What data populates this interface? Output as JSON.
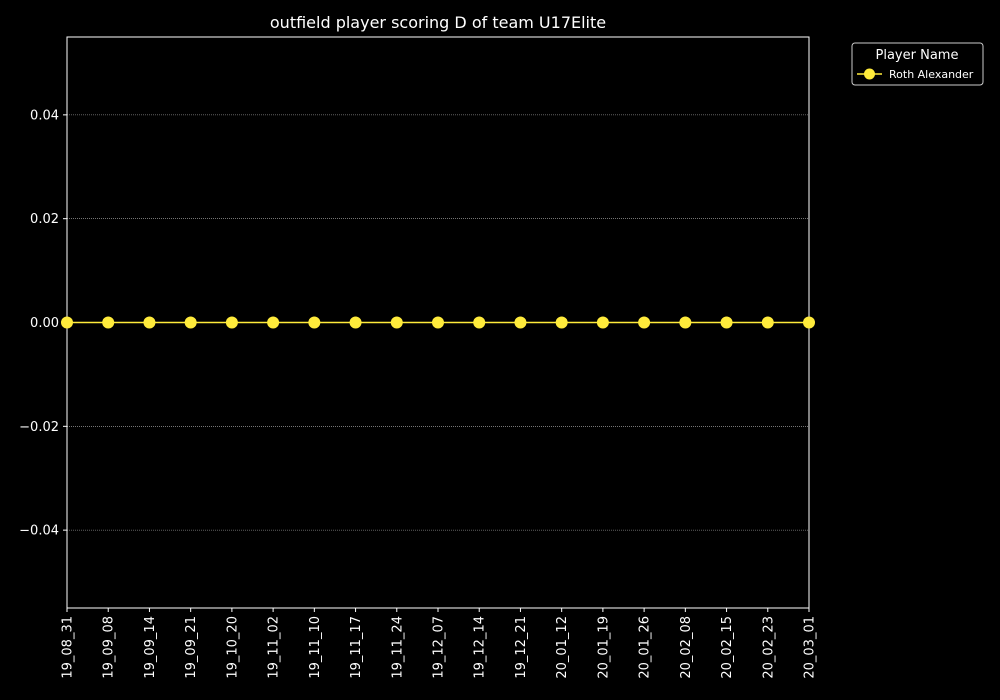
{
  "chart_data": {
    "type": "line",
    "title": "outfield player scoring D of team U17Elite",
    "xlabel": "",
    "ylabel": "",
    "categories": [
      "19_08_31",
      "19_09_08",
      "19_09_14",
      "19_09_21",
      "19_10_20",
      "19_11_02",
      "19_11_10",
      "19_11_17",
      "19_11_24",
      "19_12_07",
      "19_12_14",
      "19_12_21",
      "20_01_12",
      "20_01_19",
      "20_01_26",
      "20_02_08",
      "20_02_15",
      "20_02_23",
      "20_03_01"
    ],
    "series": [
      {
        "name": "Roth Alexander",
        "color": "#ffeb3b",
        "values": [
          0,
          0,
          0,
          0,
          0,
          0,
          0,
          0,
          0,
          0,
          0,
          0,
          0,
          0,
          0,
          0,
          0,
          0,
          0
        ]
      }
    ],
    "ylim": [
      -0.055,
      0.055
    ],
    "yticks": [
      -0.04,
      -0.02,
      0.0,
      0.02,
      0.04
    ],
    "ytick_labels": [
      "−0.04",
      "−0.02",
      "0.00",
      "0.02",
      "0.04"
    ],
    "grid": "horizontal-dotted",
    "legend": {
      "title": "Player Name",
      "placement": "outside-top-right"
    },
    "background": "#000000",
    "foreground": "#ffffff"
  }
}
